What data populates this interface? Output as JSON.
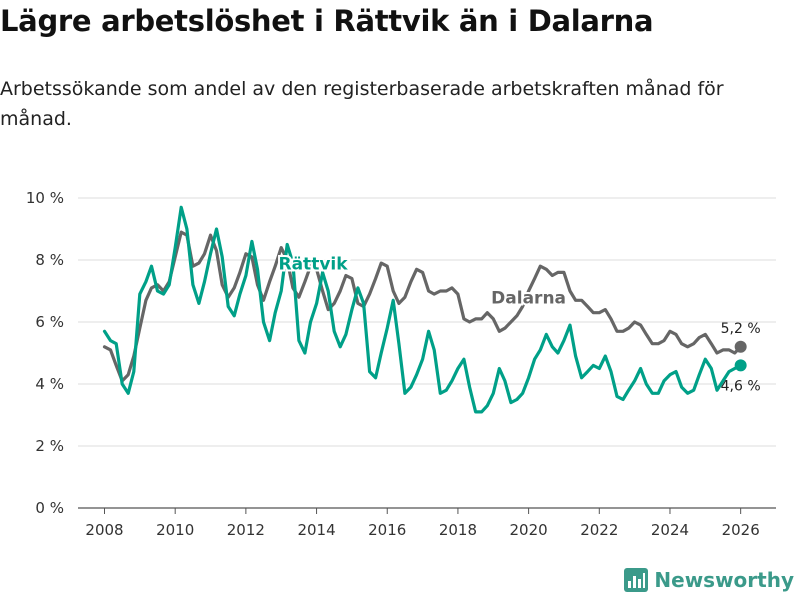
{
  "header": {
    "title": "Lägre arbetslöshet i Rättvik än i Dalarna",
    "subtitle": "Arbetssökande som andel av den registerbaserade arbetskraften månad för månad."
  },
  "brand": {
    "name": "Newsworthy",
    "icon": "bar-chart-icon",
    "color": "#3b9a8a"
  },
  "chart_data": {
    "type": "line",
    "title": "Lägre arbetslöshet i Rättvik än i Dalarna",
    "xlabel": "",
    "ylabel": "",
    "xlim": [
      2007.25,
      2027.0
    ],
    "ylim": [
      0,
      10
    ],
    "x_ticks": [
      2008,
      2010,
      2012,
      2014,
      2016,
      2018,
      2020,
      2022,
      2024,
      2026
    ],
    "y_ticks": [
      0,
      2,
      4,
      6,
      8,
      10
    ],
    "y_tick_labels": [
      "0 %",
      "2 %",
      "4 %",
      "6 %",
      "8 %",
      "10 %"
    ],
    "grid": "horizontal",
    "series": [
      {
        "name": "Dalarna",
        "color": "#666666",
        "label_at": [
          2020.0,
          6.6
        ],
        "end_value_label": "5,2 %",
        "end_point": [
          2026.0,
          5.2
        ],
        "points": [
          [
            2008.0,
            5.2
          ],
          [
            2008.17,
            5.1
          ],
          [
            2008.33,
            4.6
          ],
          [
            2008.5,
            4.1
          ],
          [
            2008.67,
            4.3
          ],
          [
            2008.83,
            4.9
          ],
          [
            2009.0,
            5.8
          ],
          [
            2009.17,
            6.7
          ],
          [
            2009.33,
            7.1
          ],
          [
            2009.5,
            7.2
          ],
          [
            2009.67,
            7.0
          ],
          [
            2009.83,
            7.3
          ],
          [
            2010.0,
            8.1
          ],
          [
            2010.17,
            8.9
          ],
          [
            2010.33,
            8.8
          ],
          [
            2010.5,
            7.8
          ],
          [
            2010.67,
            7.9
          ],
          [
            2010.83,
            8.2
          ],
          [
            2011.0,
            8.8
          ],
          [
            2011.17,
            8.3
          ],
          [
            2011.33,
            7.2
          ],
          [
            2011.5,
            6.8
          ],
          [
            2011.67,
            7.1
          ],
          [
            2011.83,
            7.6
          ],
          [
            2012.0,
            8.2
          ],
          [
            2012.17,
            8.1
          ],
          [
            2012.33,
            7.2
          ],
          [
            2012.5,
            6.7
          ],
          [
            2012.67,
            7.3
          ],
          [
            2012.83,
            7.8
          ],
          [
            2013.0,
            8.4
          ],
          [
            2013.17,
            8.0
          ],
          [
            2013.33,
            7.1
          ],
          [
            2013.5,
            6.8
          ],
          [
            2013.67,
            7.3
          ],
          [
            2013.83,
            7.8
          ],
          [
            2014.0,
            7.7
          ],
          [
            2014.17,
            7.0
          ],
          [
            2014.33,
            6.4
          ],
          [
            2014.5,
            6.6
          ],
          [
            2014.67,
            7.0
          ],
          [
            2014.83,
            7.5
          ],
          [
            2015.0,
            7.4
          ],
          [
            2015.17,
            6.6
          ],
          [
            2015.33,
            6.5
          ],
          [
            2015.5,
            6.9
          ],
          [
            2015.67,
            7.4
          ],
          [
            2015.83,
            7.9
          ],
          [
            2016.0,
            7.8
          ],
          [
            2016.17,
            7.0
          ],
          [
            2016.33,
            6.6
          ],
          [
            2016.5,
            6.8
          ],
          [
            2016.67,
            7.3
          ],
          [
            2016.83,
            7.7
          ],
          [
            2017.0,
            7.6
          ],
          [
            2017.17,
            7.0
          ],
          [
            2017.33,
            6.9
          ],
          [
            2017.5,
            7.0
          ],
          [
            2017.67,
            7.0
          ],
          [
            2017.83,
            7.1
          ],
          [
            2018.0,
            6.9
          ],
          [
            2018.17,
            6.1
          ],
          [
            2018.33,
            6.0
          ],
          [
            2018.5,
            6.1
          ],
          [
            2018.67,
            6.1
          ],
          [
            2018.83,
            6.3
          ],
          [
            2019.0,
            6.1
          ],
          [
            2019.17,
            5.7
          ],
          [
            2019.33,
            5.8
          ],
          [
            2019.5,
            6.0
          ],
          [
            2019.67,
            6.2
          ],
          [
            2019.83,
            6.5
          ],
          [
            2020.0,
            7.0
          ],
          [
            2020.17,
            7.4
          ],
          [
            2020.33,
            7.8
          ],
          [
            2020.5,
            7.7
          ],
          [
            2020.67,
            7.5
          ],
          [
            2020.83,
            7.6
          ],
          [
            2021.0,
            7.6
          ],
          [
            2021.17,
            7.0
          ],
          [
            2021.33,
            6.7
          ],
          [
            2021.5,
            6.7
          ],
          [
            2021.67,
            6.5
          ],
          [
            2021.83,
            6.3
          ],
          [
            2022.0,
            6.3
          ],
          [
            2022.17,
            6.4
          ],
          [
            2022.33,
            6.1
          ],
          [
            2022.5,
            5.7
          ],
          [
            2022.67,
            5.7
          ],
          [
            2022.83,
            5.8
          ],
          [
            2023.0,
            6.0
          ],
          [
            2023.17,
            5.9
          ],
          [
            2023.33,
            5.6
          ],
          [
            2023.5,
            5.3
          ],
          [
            2023.67,
            5.3
          ],
          [
            2023.83,
            5.4
          ],
          [
            2024.0,
            5.7
          ],
          [
            2024.17,
            5.6
          ],
          [
            2024.33,
            5.3
          ],
          [
            2024.5,
            5.2
          ],
          [
            2024.67,
            5.3
          ],
          [
            2024.83,
            5.5
          ],
          [
            2025.0,
            5.6
          ],
          [
            2025.17,
            5.3
          ],
          [
            2025.33,
            5.0
          ],
          [
            2025.5,
            5.1
          ],
          [
            2025.67,
            5.1
          ],
          [
            2025.83,
            5.0
          ],
          [
            2026.0,
            5.2
          ]
        ]
      },
      {
        "name": "Rättvik",
        "color": "#00a088",
        "label_at": [
          2013.9,
          7.7
        ],
        "end_value_label": "4,6 %",
        "end_point": [
          2026.0,
          4.6
        ],
        "points": [
          [
            2008.0,
            5.7
          ],
          [
            2008.17,
            5.4
          ],
          [
            2008.33,
            5.3
          ],
          [
            2008.5,
            4.0
          ],
          [
            2008.67,
            3.7
          ],
          [
            2008.83,
            4.4
          ],
          [
            2009.0,
            6.9
          ],
          [
            2009.17,
            7.3
          ],
          [
            2009.33,
            7.8
          ],
          [
            2009.5,
            7.0
          ],
          [
            2009.67,
            6.9
          ],
          [
            2009.83,
            7.2
          ],
          [
            2010.0,
            8.4
          ],
          [
            2010.17,
            9.7
          ],
          [
            2010.33,
            9.0
          ],
          [
            2010.5,
            7.2
          ],
          [
            2010.67,
            6.6
          ],
          [
            2010.83,
            7.3
          ],
          [
            2011.0,
            8.2
          ],
          [
            2011.17,
            9.0
          ],
          [
            2011.33,
            8.1
          ],
          [
            2011.5,
            6.5
          ],
          [
            2011.67,
            6.2
          ],
          [
            2011.83,
            6.9
          ],
          [
            2012.0,
            7.5
          ],
          [
            2012.17,
            8.6
          ],
          [
            2012.33,
            7.7
          ],
          [
            2012.5,
            6.0
          ],
          [
            2012.67,
            5.4
          ],
          [
            2012.83,
            6.3
          ],
          [
            2013.0,
            7.0
          ],
          [
            2013.17,
            8.5
          ],
          [
            2013.33,
            7.9
          ],
          [
            2013.5,
            5.4
          ],
          [
            2013.67,
            5.0
          ],
          [
            2013.83,
            6.0
          ],
          [
            2014.0,
            6.6
          ],
          [
            2014.17,
            7.6
          ],
          [
            2014.33,
            7.0
          ],
          [
            2014.5,
            5.7
          ],
          [
            2014.67,
            5.2
          ],
          [
            2014.83,
            5.6
          ],
          [
            2015.0,
            6.4
          ],
          [
            2015.17,
            7.1
          ],
          [
            2015.33,
            6.6
          ],
          [
            2015.5,
            4.4
          ],
          [
            2015.67,
            4.2
          ],
          [
            2015.83,
            5.0
          ],
          [
            2016.0,
            5.8
          ],
          [
            2016.17,
            6.7
          ],
          [
            2016.33,
            5.3
          ],
          [
            2016.5,
            3.7
          ],
          [
            2016.67,
            3.9
          ],
          [
            2016.83,
            4.3
          ],
          [
            2017.0,
            4.8
          ],
          [
            2017.17,
            5.7
          ],
          [
            2017.33,
            5.1
          ],
          [
            2017.5,
            3.7
          ],
          [
            2017.67,
            3.8
          ],
          [
            2017.83,
            4.1
          ],
          [
            2018.0,
            4.5
          ],
          [
            2018.17,
            4.8
          ],
          [
            2018.33,
            3.9
          ],
          [
            2018.5,
            3.1
          ],
          [
            2018.67,
            3.1
          ],
          [
            2018.83,
            3.3
          ],
          [
            2019.0,
            3.7
          ],
          [
            2019.17,
            4.5
          ],
          [
            2019.33,
            4.1
          ],
          [
            2019.5,
            3.4
          ],
          [
            2019.67,
            3.5
          ],
          [
            2019.83,
            3.7
          ],
          [
            2020.0,
            4.2
          ],
          [
            2020.17,
            4.8
          ],
          [
            2020.33,
            5.1
          ],
          [
            2020.5,
            5.6
          ],
          [
            2020.67,
            5.2
          ],
          [
            2020.83,
            5.0
          ],
          [
            2021.0,
            5.4
          ],
          [
            2021.17,
            5.9
          ],
          [
            2021.33,
            4.9
          ],
          [
            2021.5,
            4.2
          ],
          [
            2021.67,
            4.4
          ],
          [
            2021.83,
            4.6
          ],
          [
            2022.0,
            4.5
          ],
          [
            2022.17,
            4.9
          ],
          [
            2022.33,
            4.4
          ],
          [
            2022.5,
            3.6
          ],
          [
            2022.67,
            3.5
          ],
          [
            2022.83,
            3.8
          ],
          [
            2023.0,
            4.1
          ],
          [
            2023.17,
            4.5
          ],
          [
            2023.33,
            4.0
          ],
          [
            2023.5,
            3.7
          ],
          [
            2023.67,
            3.7
          ],
          [
            2023.83,
            4.1
          ],
          [
            2024.0,
            4.3
          ],
          [
            2024.17,
            4.4
          ],
          [
            2024.33,
            3.9
          ],
          [
            2024.5,
            3.7
          ],
          [
            2024.67,
            3.8
          ],
          [
            2024.83,
            4.3
          ],
          [
            2025.0,
            4.8
          ],
          [
            2025.17,
            4.5
          ],
          [
            2025.33,
            3.8
          ],
          [
            2025.67,
            4.4
          ],
          [
            2025.83,
            4.5
          ],
          [
            2026.0,
            4.6
          ]
        ]
      }
    ]
  }
}
